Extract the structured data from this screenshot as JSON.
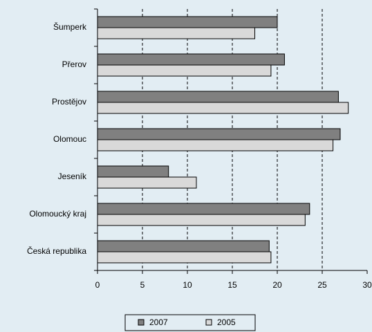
{
  "chart_data": {
    "type": "hbar",
    "categories": [
      "Šumperk",
      "Přerov",
      "Prostějov",
      "Olomouc",
      "Jeseník",
      "Olomoucký kraj",
      "Česká republika"
    ],
    "series": [
      {
        "name": "2007",
        "color": "#808080",
        "values": [
          20.0,
          20.8,
          26.8,
          27.0,
          7.9,
          23.6,
          19.1
        ]
      },
      {
        "name": "2005",
        "color": "#d9d9d9",
        "values": [
          17.5,
          19.3,
          27.9,
          26.2,
          11.0,
          23.1,
          19.3
        ]
      }
    ],
    "xlim": [
      0,
      30
    ],
    "xticks": [
      0,
      5,
      10,
      15,
      20,
      25,
      30
    ],
    "grid": true,
    "legend": "bottom"
  }
}
